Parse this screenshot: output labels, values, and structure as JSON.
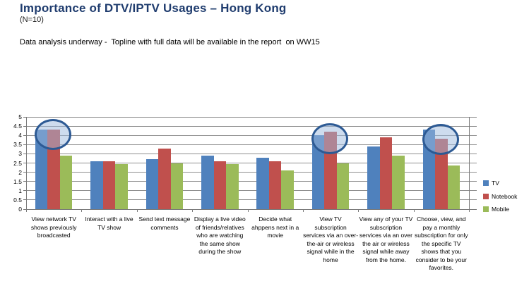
{
  "header": {
    "title": "Importance of DTV/IPTV Usages – Hong Kong",
    "sample_size": "(N=10)",
    "note": "Data analysis underway -  Topline with full data will be available in the report  on WW15"
  },
  "chart_data": {
    "type": "bar",
    "title": "",
    "xlabel": "",
    "ylabel": "",
    "ylim": [
      0,
      5
    ],
    "ytick_step": 0.5,
    "grid": true,
    "legend_position": "right",
    "categories": [
      "View network TV shows previously broadcasted",
      "Interact with a live TV show",
      "Send text message comments",
      "Display a live video of friends/relatives who are watching the same show during the show",
      "Decide what ahppens next in a movie",
      "View TV subscription services via an over-the-air or wireless signal while in the home",
      "View any of your TV subscription services via an over the air or wireless signal while away from the home.",
      "Choose, view, and pay a monthly subscription for only the specific TV shows that you consider to be your favorites."
    ],
    "series": [
      {
        "name": "TV",
        "color": "#4F81BD",
        "values": [
          4.3,
          2.6,
          2.7,
          2.9,
          2.8,
          4.0,
          3.4,
          4.3
        ]
      },
      {
        "name": "Notebook",
        "color": "#C0504D",
        "values": [
          4.3,
          2.6,
          3.3,
          2.6,
          2.6,
          4.2,
          3.9,
          3.8
        ]
      },
      {
        "name": "Mobile",
        "color": "#9BBB59",
        "values": [
          2.9,
          2.45,
          2.5,
          2.45,
          2.1,
          2.5,
          2.9,
          2.35
        ]
      }
    ],
    "annotations": {
      "type": "circle-highlight",
      "circled_category_indices": [
        0,
        5,
        7
      ],
      "stroke_color": "#2d5a94",
      "fill_color": "rgba(157,186,222,0.5)"
    }
  }
}
